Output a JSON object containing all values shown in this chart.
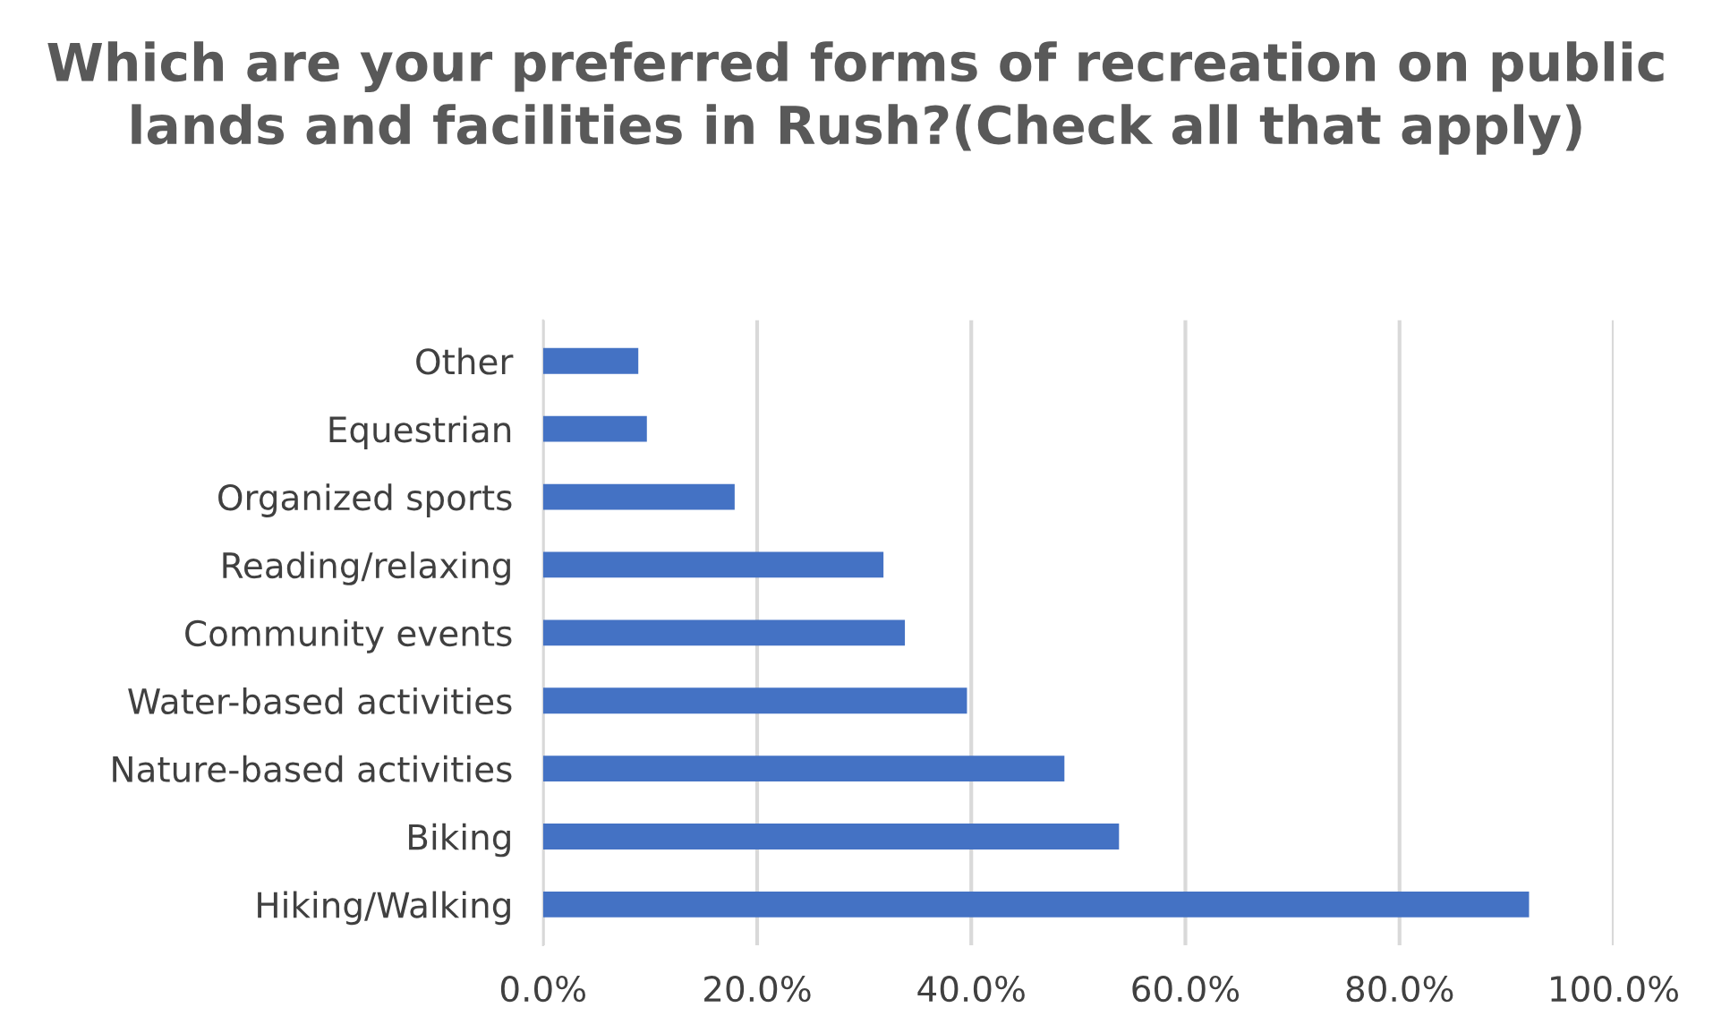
{
  "chart_data": {
    "type": "bar",
    "orientation": "horizontal",
    "title": "Which are your preferred forms of recreation on public lands and facilities in Rush?(Check all that apply)",
    "categories": [
      "Other",
      "Equestrian",
      "Organized sports",
      "Reading/relaxing",
      "Community events",
      "Water-based activities",
      "Nature-based activities",
      "Biking",
      "Hiking/Walking"
    ],
    "values": [
      8.9,
      9.7,
      17.9,
      31.8,
      33.8,
      39.6,
      48.7,
      53.8,
      92.1
    ],
    "color": "#4472c4",
    "xlim": [
      0,
      100
    ],
    "xticks": [
      {
        "value": 0,
        "label": "0.0%"
      },
      {
        "value": 20,
        "label": "20.0%"
      },
      {
        "value": 40,
        "label": "40.0%"
      },
      {
        "value": 60,
        "label": "60.0%"
      },
      {
        "value": 80,
        "label": "80.0%"
      },
      {
        "value": 100,
        "label": "100.0%"
      }
    ],
    "grid": "x",
    "legend": false
  }
}
